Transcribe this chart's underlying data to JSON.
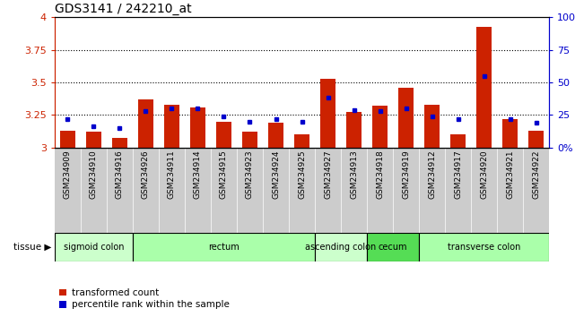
{
  "title": "GDS3141 / 242210_at",
  "samples": [
    "GSM234909",
    "GSM234910",
    "GSM234916",
    "GSM234926",
    "GSM234911",
    "GSM234914",
    "GSM234915",
    "GSM234923",
    "GSM234924",
    "GSM234925",
    "GSM234927",
    "GSM234913",
    "GSM234918",
    "GSM234919",
    "GSM234912",
    "GSM234917",
    "GSM234920",
    "GSM234921",
    "GSM234922"
  ],
  "red_values": [
    3.13,
    3.12,
    3.07,
    3.37,
    3.33,
    3.31,
    3.2,
    3.12,
    3.19,
    3.1,
    3.53,
    3.27,
    3.32,
    3.46,
    3.33,
    3.1,
    3.93,
    3.22,
    3.13
  ],
  "blue_values": [
    22,
    16,
    15,
    28,
    30,
    30,
    24,
    20,
    22,
    20,
    38,
    29,
    28,
    30,
    24,
    22,
    55,
    22,
    19
  ],
  "ymin": 3.0,
  "ymax": 4.0,
  "y2min": 0,
  "y2max": 100,
  "yticks": [
    3.0,
    3.25,
    3.5,
    3.75,
    4.0
  ],
  "y2ticks": [
    0,
    25,
    50,
    75,
    100
  ],
  "ytick_labels": [
    "3",
    "3.25",
    "3.5",
    "3.75",
    "4"
  ],
  "y2tick_labels": [
    "0%",
    "25",
    "50",
    "75",
    "100%"
  ],
  "bar_color": "#cc2200",
  "dot_color": "#0000cc",
  "tissue_groups": [
    {
      "label": "sigmoid colon",
      "start": 0,
      "end": 3,
      "color": "#ccffcc"
    },
    {
      "label": "rectum",
      "start": 3,
      "end": 10,
      "color": "#aaffaa"
    },
    {
      "label": "ascending colon",
      "start": 10,
      "end": 12,
      "color": "#ccffcc"
    },
    {
      "label": "cecum",
      "start": 12,
      "end": 14,
      "color": "#55dd55"
    },
    {
      "label": "transverse colon",
      "start": 14,
      "end": 19,
      "color": "#aaffaa"
    }
  ],
  "tissue_label": "tissue",
  "grid_color": "#000000",
  "background_color": "#ffffff",
  "xticklabel_bg": "#cccccc"
}
